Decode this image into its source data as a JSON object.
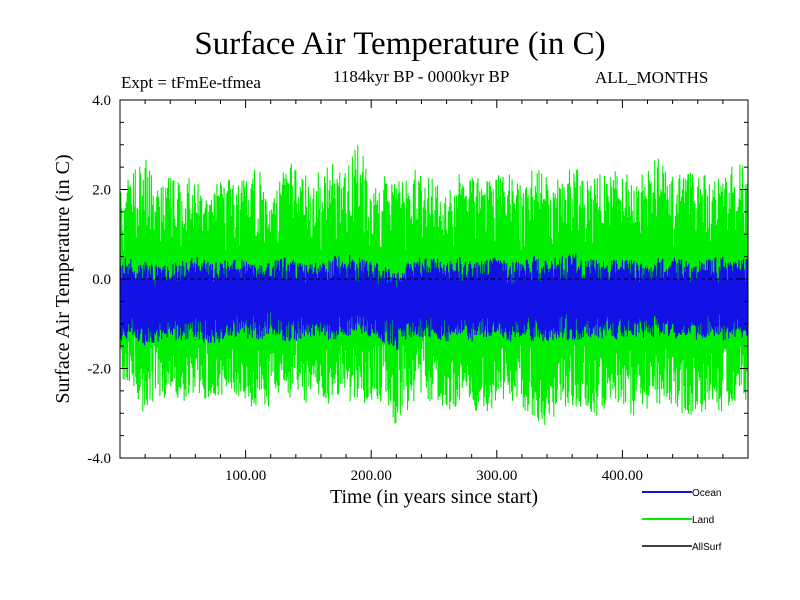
{
  "chart_data": {
    "type": "line",
    "title": "Surface Air Temperature (in C)",
    "experiment_label": "Expt = tFmEe-tfmea",
    "period_label": "1184kyr BP - 0000kyr BP",
    "months_label": "ALL_MONTHS",
    "xlabel": "Time (in years since start)",
    "ylabel": "Surface Air Temperature (in C)",
    "xlim": [
      0,
      500
    ],
    "ylim": [
      -4.0,
      4.0
    ],
    "x_ticks": [
      100,
      200,
      300,
      400
    ],
    "x_tick_labels": [
      "100.00",
      "200.00",
      "300.00",
      "400.00"
    ],
    "y_ticks": [
      -4,
      -2,
      0,
      2,
      4
    ],
    "y_tick_labels": [
      "-4.0",
      "-2.0",
      "0.0",
      "2.0",
      "4.0"
    ],
    "zero_line": true,
    "legend_position": "bottom-right, outside plot",
    "series": [
      {
        "name": "Land",
        "color": "#00ee00",
        "noisy": true,
        "mean": -0.4,
        "sample_step_years": 10,
        "x": [
          0,
          10,
          20,
          30,
          40,
          50,
          60,
          70,
          80,
          90,
          100,
          110,
          120,
          130,
          140,
          150,
          160,
          170,
          180,
          190,
          200,
          210,
          220,
          230,
          240,
          250,
          260,
          270,
          280,
          290,
          300,
          310,
          320,
          330,
          340,
          350,
          360,
          370,
          380,
          390,
          400,
          410,
          420,
          430,
          440,
          450,
          460,
          470,
          480,
          490,
          500
        ],
        "upper": [
          1.9,
          2.4,
          2.8,
          2.0,
          2.4,
          2.2,
          2.3,
          1.9,
          2.5,
          2.2,
          2.3,
          2.6,
          2.0,
          2.4,
          2.7,
          2.3,
          2.4,
          2.8,
          2.4,
          3.1,
          2.2,
          2.3,
          2.1,
          2.5,
          2.4,
          2.3,
          2.2,
          2.4,
          2.3,
          2.2,
          2.3,
          2.4,
          2.1,
          2.5,
          2.3,
          2.2,
          2.6,
          2.2,
          2.3,
          2.6,
          2.4,
          2.2,
          2.5,
          2.9,
          2.4,
          2.3,
          2.6,
          2.2,
          2.3,
          2.6,
          2.5
        ],
        "lower": [
          -2.2,
          -2.4,
          -3.1,
          -2.6,
          -2.7,
          -2.9,
          -2.5,
          -2.8,
          -2.6,
          -2.5,
          -2.8,
          -2.9,
          -3.0,
          -2.7,
          -2.6,
          -2.8,
          -2.9,
          -2.7,
          -2.6,
          -3.1,
          -2.7,
          -2.8,
          -3.3,
          -2.9,
          -2.6,
          -2.8,
          -3.0,
          -2.8,
          -3.0,
          -3.1,
          -2.8,
          -2.7,
          -2.9,
          -3.1,
          -3.3,
          -2.9,
          -3.0,
          -2.8,
          -3.1,
          -2.9,
          -2.8,
          -3.1,
          -3.0,
          -2.9,
          -2.8,
          -3.1,
          -3.0,
          -2.9,
          -3.0,
          -2.8,
          -2.7
        ]
      },
      {
        "name": "Ocean",
        "color": "#1212e6",
        "noisy": true,
        "mean": -0.45,
        "sample_step_years": 10,
        "x": [
          0,
          10,
          20,
          30,
          40,
          50,
          60,
          70,
          80,
          90,
          100,
          110,
          120,
          130,
          140,
          150,
          160,
          170,
          180,
          190,
          200,
          210,
          220,
          230,
          240,
          250,
          260,
          270,
          280,
          290,
          300,
          310,
          320,
          330,
          340,
          350,
          360,
          370,
          380,
          390,
          400,
          410,
          420,
          430,
          440,
          450,
          460,
          470,
          480,
          490,
          500
        ],
        "upper": [
          0.5,
          0.5,
          0.4,
          0.3,
          0.3,
          0.4,
          0.5,
          0.4,
          0.4,
          0.5,
          0.4,
          0.3,
          0.4,
          0.5,
          0.4,
          0.3,
          0.5,
          0.5,
          0.6,
          0.5,
          0.4,
          0.3,
          0.1,
          0.4,
          0.5,
          0.5,
          0.4,
          0.5,
          0.4,
          0.5,
          0.5,
          0.4,
          0.4,
          0.5,
          0.4,
          0.5,
          0.6,
          0.5,
          0.4,
          0.4,
          0.5,
          0.4,
          0.3,
          0.5,
          0.5,
          0.4,
          0.4,
          0.5,
          0.5,
          0.4,
          0.5
        ],
        "lower": [
          -1.4,
          -1.3,
          -1.5,
          -1.4,
          -1.3,
          -1.4,
          -1.3,
          -1.5,
          -1.4,
          -1.3,
          -1.3,
          -1.4,
          -1.2,
          -1.4,
          -1.4,
          -1.3,
          -1.3,
          -1.4,
          -1.3,
          -1.2,
          -1.3,
          -1.4,
          -1.7,
          -1.3,
          -1.3,
          -1.3,
          -1.4,
          -1.3,
          -1.4,
          -1.3,
          -1.3,
          -1.4,
          -1.3,
          -1.4,
          -1.4,
          -1.3,
          -1.4,
          -1.3,
          -1.3,
          -1.4,
          -1.3,
          -1.4,
          -1.3,
          -1.3,
          -1.4,
          -1.3,
          -1.4,
          -1.3,
          -1.4,
          -1.3,
          -1.3
        ]
      },
      {
        "name": "AllSurf",
        "color": "#000000",
        "noisy": false,
        "x": [
          0,
          500
        ],
        "y": [
          0.0,
          0.0
        ]
      }
    ]
  }
}
